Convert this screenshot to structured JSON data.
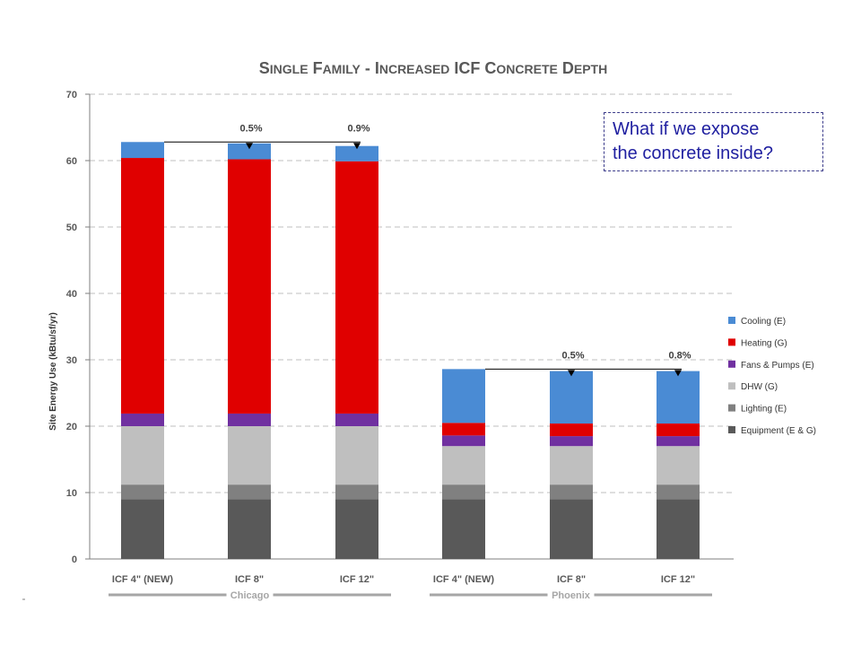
{
  "callout": {
    "line1": "What if we expose",
    "line2": "the concrete inside?"
  },
  "chart_data": {
    "type": "bar",
    "stacked": true,
    "title": {
      "parts": [
        {
          "big": "S",
          "small": "INGLE"
        },
        {
          "big": " F",
          "small": "AMILY"
        },
        {
          "big": " - I",
          "small": "NCREASED"
        },
        {
          "big": " ICF C",
          "small": "ONCRETE"
        },
        {
          "big": " D",
          "small": "EPTH"
        }
      ]
    },
    "ylabel": "Site Energy Use (kBtu/sf/yr)",
    "ylim": [
      0,
      70
    ],
    "yticks": [
      0,
      10,
      20,
      30,
      40,
      50,
      60,
      70
    ],
    "grid": true,
    "legend_position": "right",
    "categories": [
      "ICF 4\" (NEW)",
      "ICF 8\"",
      "ICF 12\"",
      "ICF 4\" (NEW)",
      "ICF 8\"",
      "ICF 12\""
    ],
    "groups": [
      {
        "label": "Chicago",
        "categories": [
          0,
          1,
          2
        ]
      },
      {
        "label": "Phoenix",
        "categories": [
          3,
          4,
          5
        ]
      }
    ],
    "series": [
      {
        "name": "Equipment (E & G)",
        "color": "#595959",
        "values": [
          9.0,
          9.0,
          9.0,
          9.0,
          9.0,
          9.0
        ]
      },
      {
        "name": "Lighting (E)",
        "color": "#808080",
        "values": [
          2.2,
          2.2,
          2.2,
          2.2,
          2.2,
          2.2
        ]
      },
      {
        "name": "DHW (G)",
        "color": "#bfbfbf",
        "values": [
          8.8,
          8.8,
          8.8,
          5.8,
          5.8,
          5.8
        ]
      },
      {
        "name": "Fans & Pumps (E)",
        "color": "#7030a0",
        "values": [
          1.9,
          1.9,
          1.9,
          1.6,
          1.5,
          1.5
        ]
      },
      {
        "name": "Heating (G)",
        "color": "#e00000",
        "values": [
          38.5,
          38.3,
          38.0,
          1.9,
          1.9,
          1.9
        ]
      },
      {
        "name": "Cooling (E)",
        "color": "#4a8bd4",
        "values": [
          2.4,
          2.4,
          2.3,
          8.1,
          7.9,
          7.9
        ]
      }
    ],
    "annotations": [
      {
        "text": "0.5%",
        "category": 1,
        "ref_category": 0
      },
      {
        "text": "0.9%",
        "category": 2,
        "ref_category": 0
      },
      {
        "text": "0.5%",
        "category": 4,
        "ref_category": 3
      },
      {
        "text": "0.8%",
        "category": 5,
        "ref_category": 3
      }
    ]
  }
}
